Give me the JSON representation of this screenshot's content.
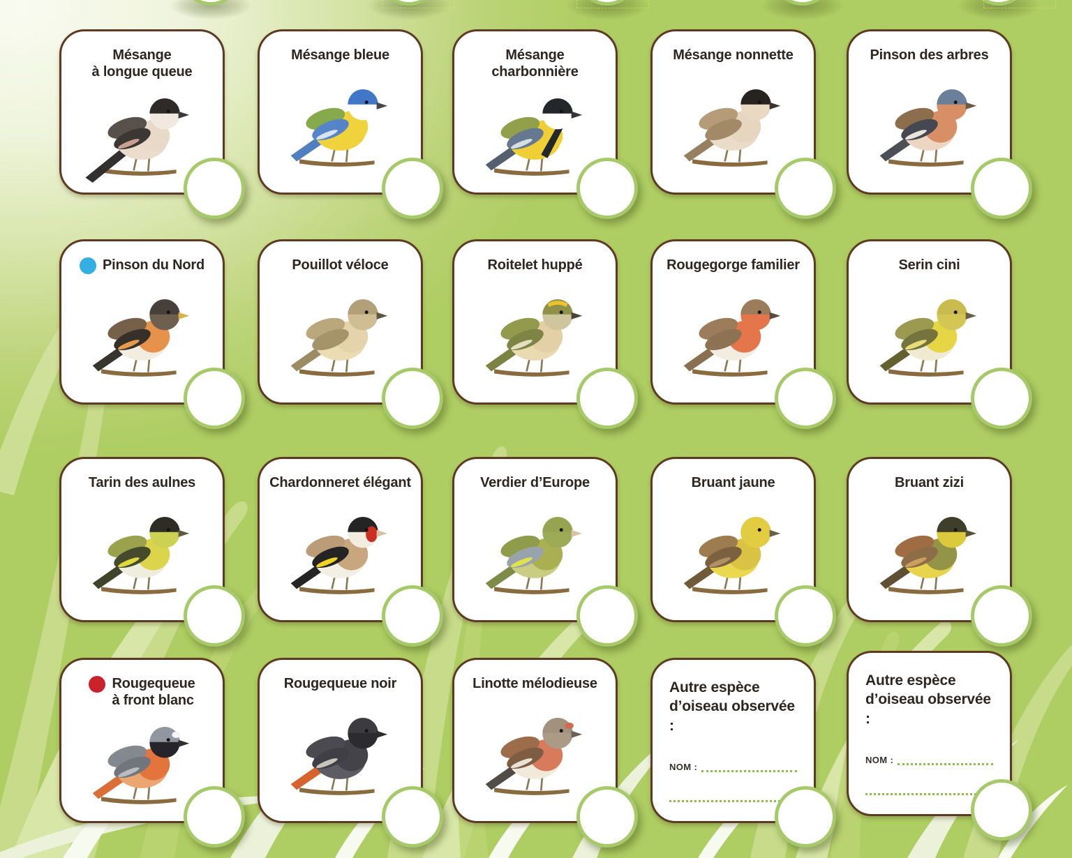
{
  "sheet": {
    "kind": "bird-observation-checklist",
    "language": "fr"
  },
  "colors": {
    "background_green": "#aecd62",
    "card_border": "#5e3a22",
    "circle_border": "#a6ca69",
    "title_text": "#2d2621",
    "dotted_line": "#8fbc4f",
    "dot_blue": "#35aee3",
    "dot_red": "#c9222b"
  },
  "other_card": {
    "nom_label": "NOM :"
  },
  "cards": [
    {
      "type": "bird",
      "title": "Mésange\nà longue queue",
      "bird": {
        "cap": "#2e2a28",
        "face": "#f1e9df",
        "back": "#57504b",
        "wing": "#3a3734",
        "wingbar": "#c99f8e",
        "breast": "#e9d9c9",
        "belly": "#ecdccb",
        "tail": "#32302e",
        "long_tail": true,
        "beak": "#3a3a3a"
      }
    },
    {
      "type": "bird",
      "title": "Mésange bleue",
      "bird": {
        "cap": "#4077c8",
        "face": "#ffffff",
        "back": "#85a94b",
        "wing": "#5585c8",
        "wingbar": "#d9e2ef",
        "breast": "#f0d33c",
        "belly": "#f0d33c",
        "tail": "#4f7fc0",
        "beak": "#44474c"
      }
    },
    {
      "type": "bird",
      "title": "Mésange  charbonnière",
      "bird": {
        "cap": "#23262b",
        "face": "#ffffff",
        "back": "#93a04b",
        "wing": "#64798f",
        "wingbar": "#d8dde2",
        "breast": "#f0cf36",
        "belly": "#f0cf36",
        "tail": "#55606e",
        "breast_stripe": "#23262b",
        "beak": "#33353a"
      }
    },
    {
      "type": "bird",
      "title": "Mésange nonnette",
      "bird": {
        "cap": "#262320",
        "face": "#ead9c2",
        "back": "#b69b79",
        "wing": "#a28a69",
        "breast": "#e6d6c0",
        "belly": "#eadcc8",
        "tail": "#97805f",
        "beak": "#3a332c"
      }
    },
    {
      "type": "bird",
      "title": "Pinson des arbres",
      "bird": {
        "cap": "#6b7f9a",
        "face": "#d98f66",
        "back": "#8c6e4d",
        "wing": "#454850",
        "wingbar": "#e8e4da",
        "breast": "#d98f66",
        "belly": "#ecd6c2",
        "tail": "#4c4f55",
        "beak": "#6a5a48"
      }
    },
    {
      "type": "bird",
      "title": "Pinson du Nord",
      "dot_color": "#35aee3",
      "bird": {
        "cap": "#47403a",
        "face": "#6e5f4e",
        "back": "#776049",
        "wing": "#35302a",
        "wingbar": "#e69a50",
        "breast": "#e6924c",
        "belly": "#f3ece1",
        "tail": "#38342e",
        "beak": "#d8b24a"
      }
    },
    {
      "type": "bird",
      "title": "Pouillot véloce",
      "bird": {
        "cap": "#b2a078",
        "face": "#cfbd93",
        "back": "#baa87c",
        "wing": "#a5936a",
        "breast": "#e4d3ab",
        "belly": "#ecdcb4",
        "tail": "#9c8c64",
        "beak": "#5f5442"
      }
    },
    {
      "type": "bird",
      "title": "Roitelet huppé",
      "bird": {
        "cap": "#8f9148",
        "face": "#d0c69e",
        "back": "#939a4d",
        "wing": "#7e8443",
        "wingbar": "#e3e0c0",
        "breast": "#e3d0a6",
        "belly": "#e9dab1",
        "tail": "#7c8242",
        "crown_stripe": "#ecc22e",
        "beak": "#4a4436"
      }
    },
    {
      "type": "bird",
      "title": "Rougegorge familier",
      "bird": {
        "cap": "#9b7c5b",
        "face": "#e5764b",
        "back": "#9b7c5b",
        "wing": "#8e7254",
        "breast": "#e5764b",
        "belly": "#f3ece1",
        "tail": "#887051",
        "beak": "#5a4c3c"
      }
    },
    {
      "type": "bird",
      "title": "Serin cini",
      "bird": {
        "cap": "#c9bb4e",
        "face": "#d3c654",
        "back": "#9c9a50",
        "wing": "#75743f",
        "wingbar": "#e7dc7a",
        "breast": "#e6d545",
        "belly": "#f0ead0",
        "tail": "#62612f",
        "beak": "#6a5f45"
      }
    },
    {
      "type": "bird",
      "title": "Tarin des aulnes",
      "bird": {
        "cap": "#2e2d23",
        "face": "#ccd154",
        "back": "#9aa24d",
        "wing": "#454a2c",
        "wingbar": "#e0d843",
        "breast": "#dcd44a",
        "belly": "#efeede",
        "tail": "#3f4428",
        "beak": "#5f5a40"
      }
    },
    {
      "type": "bird",
      "title": "Chardonneret élégant",
      "bird": {
        "cap": "#242424",
        "face": "#f2ece1",
        "face_patch": "#cb2f22",
        "back": "#bb9c76",
        "wing": "#242424",
        "wingbar": "#f2d326",
        "breast": "#c8a77e",
        "belly": "#f4efe5",
        "tail": "#242424",
        "beak": "#d8c2a2"
      }
    },
    {
      "type": "bird",
      "title": "Verdier d’Europe",
      "bird": {
        "cap": "#96a351",
        "face": "#9eab56",
        "back": "#8f9c4c",
        "wing": "#99a3ab",
        "wingbar": "#dfe24a",
        "breast": "#aab052",
        "belly": "#c9cc82",
        "tail": "#7d8c46",
        "beak": "#d8c2a2"
      }
    },
    {
      "type": "bird",
      "title": "Bruant jaune",
      "bird": {
        "cap": "#e1cc42",
        "face": "#e1cc42",
        "back": "#9d7d50",
        "wing": "#7c6140",
        "wingbar": "#b29066",
        "breast": "#d9c244",
        "belly": "#ead94e",
        "tail": "#6f5a3a",
        "beak": "#6a5f45"
      }
    },
    {
      "type": "bird",
      "title": "Bruant zizi",
      "bird": {
        "cap": "#3f3e28",
        "face": "#ddc93c",
        "back": "#a06c44",
        "wing": "#8d6d47",
        "wingbar": "#c9a05e",
        "breast": "#939447",
        "belly": "#e8d44c",
        "tail": "#5f4f33",
        "beak": "#55503c"
      }
    },
    {
      "type": "bird",
      "title": "Rougequeue\nà front blanc",
      "dot_color": "#c9222b",
      "bird": {
        "cap": "#9097a0",
        "face": "#26242a",
        "back": "#84898f",
        "wing": "#71767c",
        "wingbar": "#b9bdc2",
        "breast": "#e3743c",
        "belly": "#eba671",
        "tail": "#d96f36",
        "forehead": "#f5f5f0",
        "beak": "#2e2c30"
      }
    },
    {
      "type": "bird",
      "title": "Rougequeue noir",
      "bird": {
        "cap": "#3b3b40",
        "face": "#2c2c30",
        "back": "#4a4a50",
        "wing": "#3f3f45",
        "wingbar": "#c9c5bd",
        "breast": "#434349",
        "belly": "#5c5c62",
        "tail": "#d7632f",
        "beak": "#2c2c2c"
      }
    },
    {
      "type": "bird",
      "title": "Linotte mélodieuse",
      "bird": {
        "cap": "#a2917d",
        "face": "#ab9a86",
        "back": "#9c6c4b",
        "wing": "#7e5d43",
        "wingbar": "#e9e2d6",
        "breast": "#d87a5c",
        "belly": "#f1e9da",
        "tail": "#524c46",
        "forehead": "#d3694f",
        "beak": "#6a6258"
      }
    },
    {
      "type": "other",
      "title": "Autre espèce\nd’oiseau observée :",
      "nom_label": "NOM :"
    },
    {
      "type": "other",
      "title": "Autre espèce\nd’oiseau observée :",
      "nom_label": "NOM :"
    }
  ]
}
